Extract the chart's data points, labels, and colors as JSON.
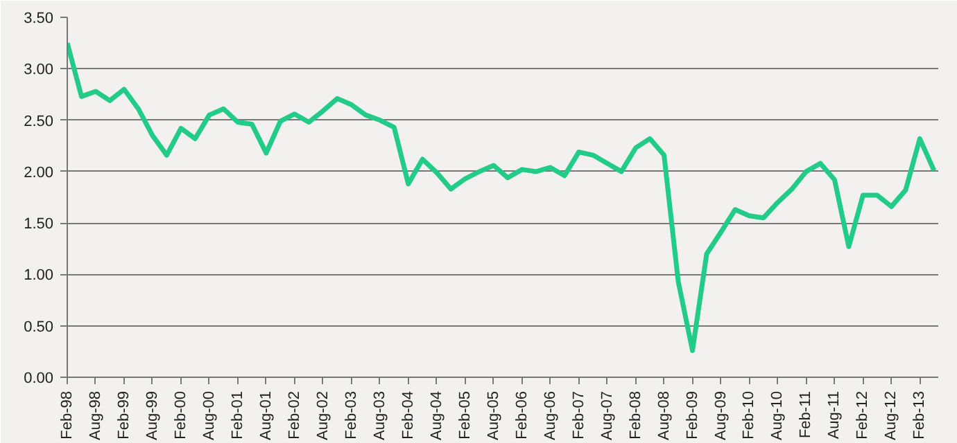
{
  "chart_data": {
    "type": "line",
    "categories": [
      "Feb-98",
      null,
      "Aug-98",
      null,
      "Feb-99",
      null,
      "Aug-99",
      null,
      "Feb-00",
      null,
      "Aug-00",
      null,
      "Feb-01",
      null,
      "Aug-01",
      null,
      "Feb-02",
      null,
      "Aug-02",
      null,
      "Feb-03",
      null,
      "Aug-03",
      null,
      "Feb-04",
      null,
      "Aug-04",
      null,
      "Feb-05",
      null,
      "Aug-05",
      null,
      "Feb-06",
      null,
      "Aug-06",
      null,
      "Feb-07",
      null,
      "Aug-07",
      null,
      "Feb-08",
      null,
      "Aug-08",
      null,
      "Feb-09",
      null,
      "Aug-09",
      null,
      "Feb-10",
      null,
      "Aug-10",
      null,
      "Feb-11",
      null,
      "Aug-11",
      null,
      "Feb-12",
      null,
      "Aug-12",
      null,
      "Feb-13",
      null
    ],
    "series": [
      {
        "color": "#22cc88",
        "values": [
          3.25,
          2.73,
          2.78,
          2.69,
          2.8,
          2.61,
          2.35,
          2.16,
          2.42,
          2.32,
          2.55,
          2.61,
          2.48,
          2.46,
          2.18,
          2.49,
          2.56,
          2.48,
          2.59,
          2.71,
          2.65,
          2.55,
          2.5,
          2.43,
          1.88,
          2.12,
          1.99,
          1.83,
          1.93,
          2.0,
          2.06,
          1.94,
          2.02,
          2.0,
          2.04,
          1.96,
          2.19,
          2.16,
          2.08,
          2.0,
          2.23,
          2.32,
          2.16,
          0.93,
          0.26,
          1.2,
          1.41,
          1.63,
          1.57,
          1.55,
          1.7,
          1.83,
          2.0,
          2.08,
          1.92,
          1.27,
          1.77,
          1.77,
          1.66,
          1.82,
          2.32,
          2.01
        ]
      }
    ],
    "ylim": [
      0,
      3.5
    ],
    "yticks": [
      {
        "value": 0,
        "label": "0.00"
      },
      {
        "value": 0.5,
        "label": "0.50"
      },
      {
        "value": 1,
        "label": "1.00"
      },
      {
        "value": 1.5,
        "label": "1.50"
      },
      {
        "value": 2,
        "label": "2.00"
      },
      {
        "value": 2.5,
        "label": "2.50"
      },
      {
        "value": 3,
        "label": "3.00"
      },
      {
        "value": 3.5,
        "label": "3.50"
      }
    ],
    "grid": "y",
    "marker": "none",
    "line_style": "solid"
  }
}
